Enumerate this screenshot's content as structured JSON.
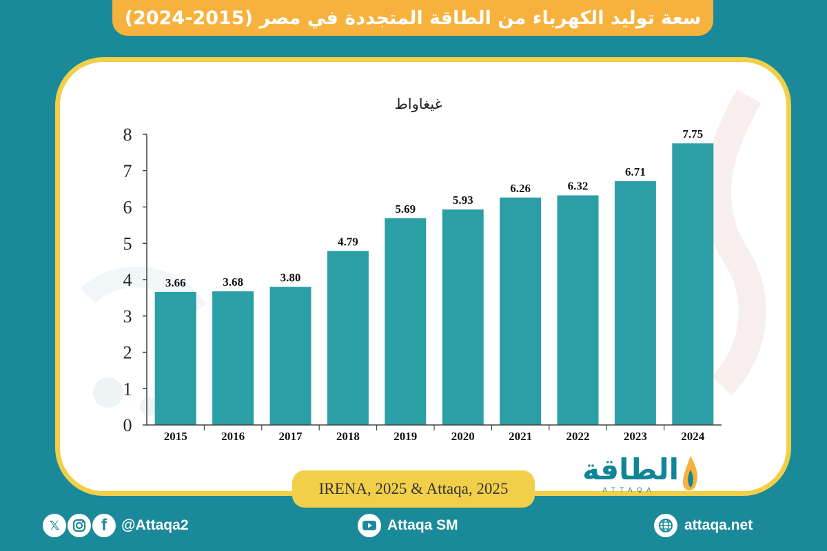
{
  "title": "سعة توليد الكهرباء من الطاقة المتجددة في مصر (2015-2024)",
  "source": "IRENA, 2025 & Attaqa, 2025",
  "logo": {
    "arabic": "الطاقة",
    "english": "ATTAQA"
  },
  "footer": {
    "social_handle": "@Attaqa2",
    "youtube_handle": "Attaqa SM",
    "website": "attaqa.net"
  },
  "colors": {
    "background": "#1a8a9a",
    "bar": "#2b9ea6",
    "title_bar": "#f6b23c",
    "card_border": "#f2cf48"
  },
  "chart_data": {
    "type": "bar",
    "ylabel": "غيغاواط",
    "categories": [
      "2015",
      "2016",
      "2017",
      "2018",
      "2019",
      "2020",
      "2021",
      "2022",
      "2023",
      "2024"
    ],
    "values": [
      3.66,
      3.68,
      3.8,
      4.79,
      5.69,
      5.93,
      6.26,
      6.32,
      6.71,
      7.75
    ],
    "value_labels": [
      "3.66",
      "3.68",
      "3.80",
      "4.79",
      "5.69",
      "5.93",
      "6.26",
      "6.32",
      "6.71",
      "7.75"
    ],
    "ylim": [
      0,
      8
    ],
    "yticks": [
      "0",
      "1",
      "2",
      "3",
      "4",
      "5",
      "6",
      "7",
      "8"
    ],
    "grid": false
  }
}
